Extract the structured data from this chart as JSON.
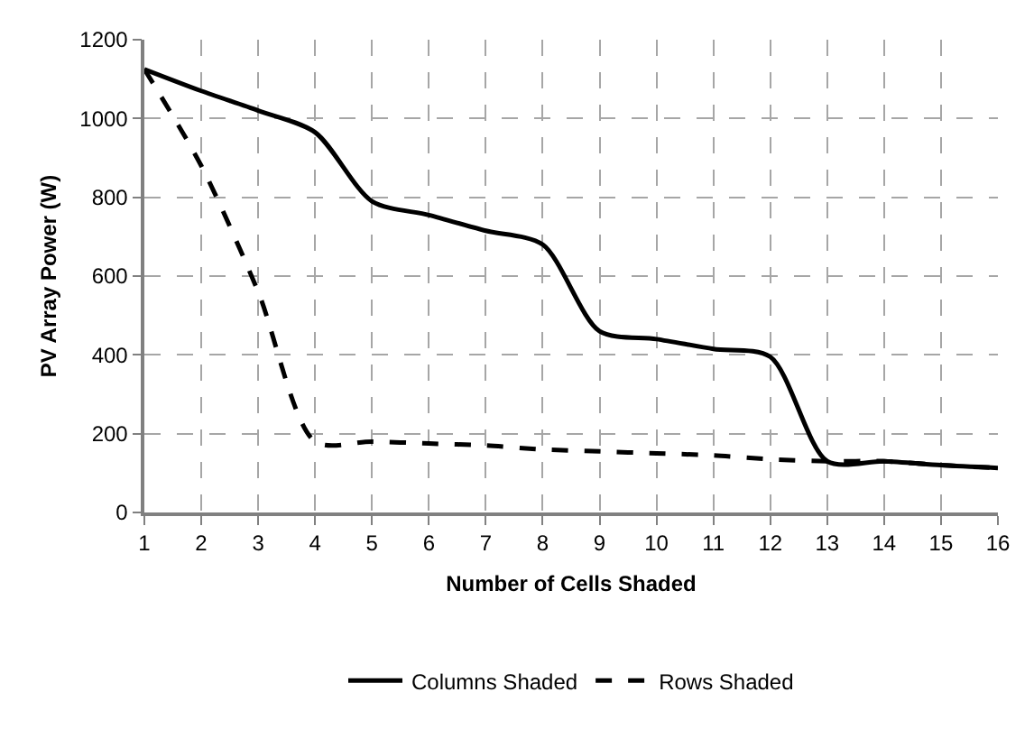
{
  "chart_data": {
    "type": "line",
    "xlabel": "Number of Cells Shaded",
    "ylabel": "PV Array Power (W)",
    "x": [
      1,
      2,
      3,
      4,
      5,
      6,
      7,
      8,
      9,
      10,
      11,
      12,
      13,
      14,
      15,
      16
    ],
    "series": [
      {
        "name": "Columns Shaded",
        "color": "#000000",
        "line_style": "solid",
        "values": [
          1125,
          1070,
          1020,
          965,
          790,
          755,
          715,
          680,
          460,
          440,
          415,
          395,
          130,
          130,
          120,
          113
        ]
      },
      {
        "name": "Rows Shaded",
        "color": "#000000",
        "line_style": "dashed",
        "values": [
          1125,
          880,
          560,
          180,
          180,
          175,
          170,
          160,
          155,
          150,
          145,
          135,
          130,
          130,
          120,
          113
        ]
      }
    ],
    "xlim": [
      1,
      16
    ],
    "xticks": [
      1,
      2,
      3,
      4,
      5,
      6,
      7,
      8,
      9,
      10,
      11,
      12,
      13,
      14,
      15,
      16
    ],
    "ylim": [
      0,
      1200
    ],
    "yticks": [
      0,
      200,
      400,
      600,
      800,
      1000,
      1200
    ],
    "grid": true,
    "legend": "bottom",
    "marker": "none"
  }
}
